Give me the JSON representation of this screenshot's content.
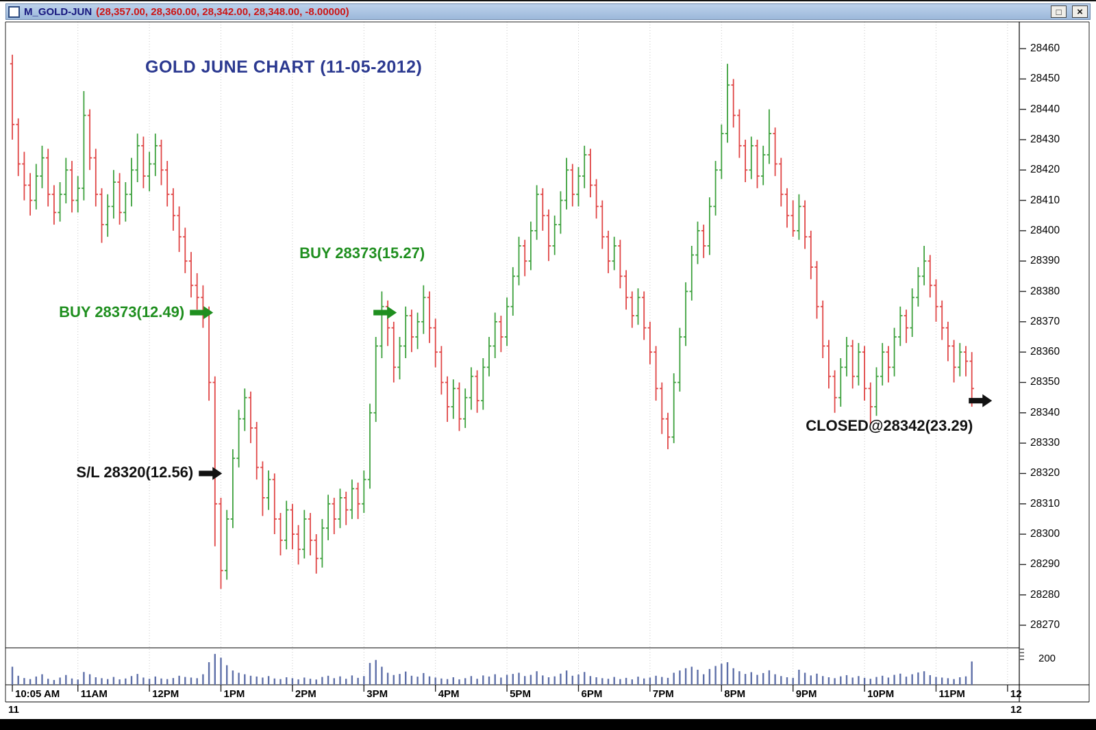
{
  "window": {
    "title_symbol": "M_GOLD-JUN",
    "title_values": "(28,357.00, 28,360.00, 28,342.00, 28,348.00, -8.00000)",
    "controls": {
      "maximize_glyph": "□",
      "close_glyph": "×"
    }
  },
  "chart": {
    "title": "GOLD JUNE CHART (11-05-2012)",
    "colors": {
      "up": "#3da13d",
      "down": "#e04545",
      "volume": "#5e6fa8",
      "grid": "#c5c5c5",
      "title": "#2b3990",
      "frame": "#222222"
    },
    "price_ticks": [
      28460,
      28450,
      28440,
      28430,
      28420,
      28410,
      28400,
      28390,
      28380,
      28370,
      28360,
      28350,
      28340,
      28330,
      28320,
      28310,
      28300,
      28290,
      28280,
      28270
    ],
    "time_ticks": [
      {
        "label": "10:05 AM",
        "index": 0
      },
      {
        "label": "11AM",
        "index": 11
      },
      {
        "label": "12PM",
        "index": 23
      },
      {
        "label": "1PM",
        "index": 35
      },
      {
        "label": "2PM",
        "index": 47
      },
      {
        "label": "3PM",
        "index": 59
      },
      {
        "label": "4PM",
        "index": 71
      },
      {
        "label": "5PM",
        "index": 83
      },
      {
        "label": "6PM",
        "index": 95
      },
      {
        "label": "7PM",
        "index": 107
      },
      {
        "label": "8PM",
        "index": 119
      },
      {
        "label": "9PM",
        "index": 131
      },
      {
        "label": "10PM",
        "index": 143
      },
      {
        "label": "11PM",
        "index": 155
      },
      {
        "label": "12",
        "index": 167
      }
    ],
    "volume_axis_label": "200",
    "date_left": "11",
    "date_right": "12",
    "annotations": [
      {
        "id": "buy-1",
        "text": "BUY 28373(12.49)",
        "color": "#1f8f1f",
        "index": 33.7,
        "price": 28373,
        "placement": "left"
      },
      {
        "id": "stop-loss",
        "text": "S/L 28320(12.56)",
        "color": "#111111",
        "index": 35.2,
        "price": 28320,
        "placement": "left"
      },
      {
        "id": "buy-2",
        "text": "BUY 28373(15.27)",
        "color": "#1f8f1f",
        "index": 64.5,
        "price": 28373,
        "placement": "above-left"
      },
      {
        "id": "closed",
        "text": "CLOSED@28342(23.29)",
        "color": "#111111",
        "index": 164.4,
        "price": 28344,
        "placement": "below-left"
      }
    ]
  },
  "chart_data": {
    "type": "ohlc_bars_with_volume",
    "symbol": "M_GOLD-JUN",
    "session_date": "11-05-2012",
    "interval_minutes": 5,
    "session_start": "10:05 AM",
    "ylim": [
      28270,
      28460
    ],
    "volume_scale_max_label": 200,
    "last_bar": {
      "open": 28357,
      "high": 28360,
      "low": 28342,
      "close": 28348,
      "change": -8.0
    },
    "bars": [
      [
        28455,
        28458,
        28430,
        28435
      ],
      [
        28435,
        28437,
        28418,
        28422
      ],
      [
        28422,
        28426,
        28410,
        28415
      ],
      [
        28415,
        28419,
        28405,
        28410
      ],
      [
        28410,
        28422,
        28407,
        28418
      ],
      [
        28418,
        28428,
        28414,
        28424
      ],
      [
        28424,
        28427,
        28408,
        28412
      ],
      [
        28412,
        28415,
        28402,
        28406
      ],
      [
        28406,
        28416,
        28403,
        28412
      ],
      [
        28412,
        28424,
        28409,
        28420
      ],
      [
        28420,
        28423,
        28406,
        28410
      ],
      [
        28410,
        28418,
        28406,
        28414
      ],
      [
        28414,
        28446,
        28410,
        28438
      ],
      [
        28438,
        28440,
        28420,
        28424
      ],
      [
        28424,
        28427,
        28408,
        28412
      ],
      [
        28412,
        28414,
        28396,
        28402
      ],
      [
        28402,
        28412,
        28398,
        28408
      ],
      [
        28408,
        28420,
        28404,
        28416
      ],
      [
        28416,
        28419,
        28402,
        28406
      ],
      [
        28406,
        28416,
        28403,
        28412
      ],
      [
        28412,
        28424,
        28408,
        28420
      ],
      [
        28420,
        28432,
        28416,
        28428
      ],
      [
        28428,
        28431,
        28414,
        28418
      ],
      [
        28418,
        28426,
        28413,
        28422
      ],
      [
        28422,
        28432,
        28418,
        28428
      ],
      [
        28428,
        28430,
        28415,
        28420
      ],
      [
        28420,
        28423,
        28408,
        28412
      ],
      [
        28412,
        28414,
        28400,
        28405
      ],
      [
        28405,
        28408,
        28393,
        28398
      ],
      [
        28398,
        28401,
        28386,
        28390
      ],
      [
        28390,
        28393,
        28378,
        28382
      ],
      [
        28382,
        28386,
        28374,
        28378
      ],
      [
        28378,
        28382,
        28368,
        28373
      ],
      [
        28373,
        28375,
        28344,
        28350
      ],
      [
        28350,
        28352,
        28296,
        28310
      ],
      [
        28310,
        28312,
        28282,
        28288
      ],
      [
        28288,
        28308,
        28285,
        28305
      ],
      [
        28305,
        28328,
        28302,
        28325
      ],
      [
        28325,
        28341,
        28322,
        28338
      ],
      [
        28338,
        28348,
        28334,
        28345
      ],
      [
        28345,
        28347,
        28330,
        28335
      ],
      [
        28335,
        28337,
        28318,
        28322
      ],
      [
        28322,
        28324,
        28306,
        28312
      ],
      [
        28312,
        28321,
        28308,
        28318
      ],
      [
        28318,
        28320,
        28300,
        28305
      ],
      [
        28305,
        28307,
        28293,
        28298
      ],
      [
        28298,
        28311,
        28295,
        28308
      ],
      [
        28308,
        28310,
        28295,
        28300
      ],
      [
        28300,
        28303,
        28290,
        28295
      ],
      [
        28295,
        28308,
        28292,
        28305
      ],
      [
        28305,
        28307,
        28293,
        28298
      ],
      [
        28298,
        28300,
        28287,
        28292
      ],
      [
        28292,
        28305,
        28289,
        28302
      ],
      [
        28302,
        28313,
        28298,
        28310
      ],
      [
        28310,
        28312,
        28300,
        28305
      ],
      [
        28305,
        28315,
        28302,
        28312
      ],
      [
        28312,
        28314,
        28303,
        28308
      ],
      [
        28308,
        28318,
        28305,
        28315
      ],
      [
        28315,
        28317,
        28305,
        28310
      ],
      [
        28310,
        28321,
        28307,
        28318
      ],
      [
        28318,
        28343,
        28315,
        28340
      ],
      [
        28340,
        28365,
        28337,
        28362
      ],
      [
        28362,
        28380,
        28358,
        28375
      ],
      [
        28375,
        28377,
        28362,
        28368
      ],
      [
        28368,
        28370,
        28350,
        28355
      ],
      [
        28355,
        28365,
        28351,
        28362
      ],
      [
        28362,
        28375,
        28358,
        28372
      ],
      [
        28372,
        28374,
        28360,
        28365
      ],
      [
        28365,
        28373,
        28361,
        28370
      ],
      [
        28370,
        28382,
        28366,
        28378
      ],
      [
        28378,
        28380,
        28363,
        28368
      ],
      [
        28368,
        28371,
        28355,
        28360
      ],
      [
        28360,
        28362,
        28346,
        28350
      ],
      [
        28350,
        28352,
        28337,
        28342
      ],
      [
        28342,
        28351,
        28338,
        28348
      ],
      [
        28348,
        28350,
        28334,
        28338
      ],
      [
        28338,
        28348,
        28335,
        28345
      ],
      [
        28345,
        28355,
        28341,
        28352
      ],
      [
        28352,
        28354,
        28340,
        28344
      ],
      [
        28344,
        28358,
        28341,
        28355
      ],
      [
        28355,
        28365,
        28352,
        28362
      ],
      [
        28362,
        28373,
        28358,
        28370
      ],
      [
        28370,
        28372,
        28360,
        28365
      ],
      [
        28365,
        28378,
        28362,
        28375
      ],
      [
        28375,
        28388,
        28372,
        28385
      ],
      [
        28385,
        28398,
        28382,
        28395
      ],
      [
        28395,
        28397,
        28385,
        28390
      ],
      [
        28390,
        28403,
        28387,
        28400
      ],
      [
        28400,
        28415,
        28397,
        28412
      ],
      [
        28412,
        28414,
        28400,
        28405
      ],
      [
        28405,
        28407,
        28390,
        28395
      ],
      [
        28395,
        28405,
        28392,
        28402
      ],
      [
        28402,
        28413,
        28399,
        28410
      ],
      [
        28410,
        28424,
        28407,
        28420
      ],
      [
        28420,
        28422,
        28408,
        28412
      ],
      [
        28412,
        28421,
        28408,
        28418
      ],
      [
        28418,
        28428,
        28414,
        28425
      ],
      [
        28425,
        28427,
        28411,
        28415
      ],
      [
        28415,
        28417,
        28404,
        28408
      ],
      [
        28408,
        28410,
        28394,
        28398
      ],
      [
        28398,
        28400,
        28386,
        28390
      ],
      [
        28390,
        28398,
        28387,
        28395
      ],
      [
        28395,
        28397,
        28381,
        28385
      ],
      [
        28385,
        28387,
        28374,
        28378
      ],
      [
        28378,
        28380,
        28368,
        28372
      ],
      [
        28372,
        28381,
        28369,
        28378
      ],
      [
        28378,
        28380,
        28364,
        28368
      ],
      [
        28368,
        28370,
        28356,
        28360
      ],
      [
        28360,
        28362,
        28344,
        28348
      ],
      [
        28348,
        28350,
        28333,
        28338
      ],
      [
        28338,
        28340,
        28328,
        28332
      ],
      [
        28332,
        28353,
        28330,
        28350
      ],
      [
        28350,
        28368,
        28347,
        28365
      ],
      [
        28365,
        28383,
        28362,
        28380
      ],
      [
        28380,
        28395,
        28377,
        28392
      ],
      [
        28392,
        28403,
        28389,
        28400
      ],
      [
        28400,
        28402,
        28391,
        28395
      ],
      [
        28395,
        28411,
        28392,
        28408
      ],
      [
        28408,
        28423,
        28405,
        28420
      ],
      [
        28420,
        28435,
        28417,
        28432
      ],
      [
        28432,
        28455,
        28429,
        28448
      ],
      [
        28448,
        28450,
        28434,
        28438
      ],
      [
        28438,
        28440,
        28424,
        28428
      ],
      [
        28428,
        28430,
        28416,
        28420
      ],
      [
        28420,
        28431,
        28417,
        28428
      ],
      [
        28428,
        28430,
        28414,
        28418
      ],
      [
        28418,
        28428,
        28415,
        28425
      ],
      [
        28425,
        28440,
        28422,
        28432
      ],
      [
        28432,
        28434,
        28418,
        28422
      ],
      [
        28422,
        28424,
        28408,
        28412
      ],
      [
        28412,
        28414,
        28401,
        28405
      ],
      [
        28405,
        28410,
        28398,
        28400
      ],
      [
        28400,
        28412,
        28397,
        28408
      ],
      [
        28408,
        28410,
        28394,
        28398
      ],
      [
        28398,
        28400,
        28384,
        28388
      ],
      [
        28388,
        28390,
        28371,
        28375
      ],
      [
        28375,
        28377,
        28358,
        28362
      ],
      [
        28362,
        28364,
        28348,
        28352
      ],
      [
        28352,
        28354,
        28340,
        28345
      ],
      [
        28345,
        28358,
        28342,
        28355
      ],
      [
        28355,
        28365,
        28352,
        28362
      ],
      [
        28362,
        28364,
        28348,
        28352
      ],
      [
        28352,
        28363,
        28349,
        28360
      ],
      [
        28360,
        28362,
        28344,
        28348
      ],
      [
        28348,
        28350,
        28336,
        28342
      ],
      [
        28342,
        28355,
        28339,
        28352
      ],
      [
        28352,
        28363,
        28349,
        28360
      ],
      [
        28360,
        28362,
        28350,
        28355
      ],
      [
        28355,
        28368,
        28352,
        28365
      ],
      [
        28365,
        28375,
        28362,
        28372
      ],
      [
        28372,
        28374,
        28363,
        28368
      ],
      [
        28368,
        28381,
        28365,
        28378
      ],
      [
        28378,
        28388,
        28375,
        28385
      ],
      [
        28385,
        28395,
        28382,
        28390
      ],
      [
        28390,
        28392,
        28378,
        28382
      ],
      [
        28382,
        28384,
        28370,
        28375
      ],
      [
        28375,
        28377,
        28364,
        28368
      ],
      [
        28368,
        28370,
        28357,
        28362
      ],
      [
        28362,
        28364,
        28350,
        28355
      ],
      [
        28355,
        28363,
        28352,
        28360
      ],
      [
        28360,
        28362,
        28352,
        28357
      ],
      [
        28357,
        28360,
        28342,
        28348
      ]
    ],
    "volumes": [
      120,
      60,
      45,
      38,
      55,
      70,
      40,
      32,
      48,
      65,
      42,
      35,
      85,
      70,
      50,
      44,
      38,
      52,
      36,
      42,
      58,
      72,
      48,
      40,
      55,
      42,
      38,
      45,
      60,
      52,
      48,
      44,
      70,
      150,
      205,
      180,
      130,
      95,
      80,
      70,
      60,
      55,
      48,
      58,
      42,
      38,
      50,
      44,
      36,
      48,
      40,
      35,
      52,
      60,
      44,
      56,
      40,
      62,
      46,
      58,
      145,
      165,
      120,
      80,
      65,
      72,
      88,
      60,
      54,
      78,
      56,
      48,
      42,
      38,
      50,
      36,
      44,
      58,
      40,
      62,
      55,
      70,
      48,
      66,
      72,
      80,
      58,
      66,
      90,
      62,
      50,
      56,
      74,
      95,
      60,
      68,
      85,
      58,
      50,
      44,
      40,
      52,
      38,
      46,
      36,
      54,
      42,
      48,
      60,
      52,
      46,
      80,
      95,
      110,
      120,
      100,
      70,
      105,
      125,
      140,
      150,
      110,
      90,
      72,
      84,
      66,
      78,
      96,
      70,
      58,
      50,
      46,
      100,
      80,
      62,
      74,
      58,
      50,
      44,
      56,
      64,
      48,
      58,
      46,
      40,
      52,
      60,
      48,
      66,
      74,
      54,
      70,
      82,
      90,
      64,
      52,
      48,
      44,
      38,
      50,
      56,
      155
    ]
  }
}
